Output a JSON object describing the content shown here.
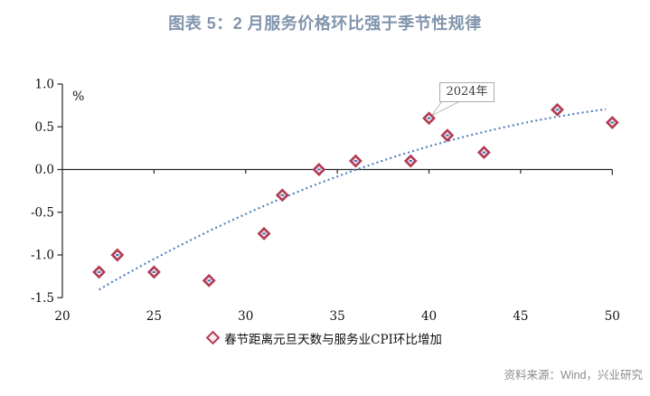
{
  "title": "图表 5：2 月服务价格环比强于季节性规律",
  "chart_data": {
    "type": "scatter",
    "series": [
      {
        "name": "春节距离元旦天数与服务业CPI环比增加",
        "points": [
          [
            22,
            -1.2
          ],
          [
            23,
            -1.0
          ],
          [
            25,
            -1.2
          ],
          [
            28,
            -1.3
          ],
          [
            31,
            -0.75
          ],
          [
            32,
            -0.3
          ],
          [
            34,
            0.0
          ],
          [
            36,
            0.1
          ],
          [
            39,
            0.1
          ],
          [
            40,
            0.6
          ],
          [
            41,
            0.4
          ],
          [
            43,
            0.2
          ],
          [
            47,
            0.7
          ],
          [
            50,
            0.55
          ]
        ]
      }
    ],
    "trend": {
      "style": "dotted",
      "type": "quadratic",
      "a": -0.00174,
      "b": 0.201,
      "c": -4.985,
      "x_start": 22,
      "x_end": 49.8
    },
    "annotation": {
      "text": "2024年",
      "point": [
        40,
        0.6
      ]
    },
    "xlim": [
      20,
      50
    ],
    "ylim": [
      -1.5,
      1.0
    ],
    "x_ticks": [
      "20",
      "25",
      "30",
      "35",
      "40",
      "45",
      "50"
    ],
    "y_ticks": [
      "1.0",
      "0.5",
      "0.0",
      "-0.5",
      "-1.0",
      "-1.5"
    ],
    "unit_label": "%",
    "gridlines": false,
    "legend_position": "bottom"
  },
  "source": "资料来源：Wind，兴业研究",
  "colors": {
    "title": "#8295ad",
    "marker": "#b23a52",
    "marker_fill": "#faf4f5",
    "marker_core": "#4d7ebc",
    "trend": "#4d7ebc",
    "axis": "#262626",
    "tick_text": "#111111",
    "source_text": "#8c8c8c",
    "annotation_border": "#ababab",
    "leader_line": "#b8b8b8"
  }
}
